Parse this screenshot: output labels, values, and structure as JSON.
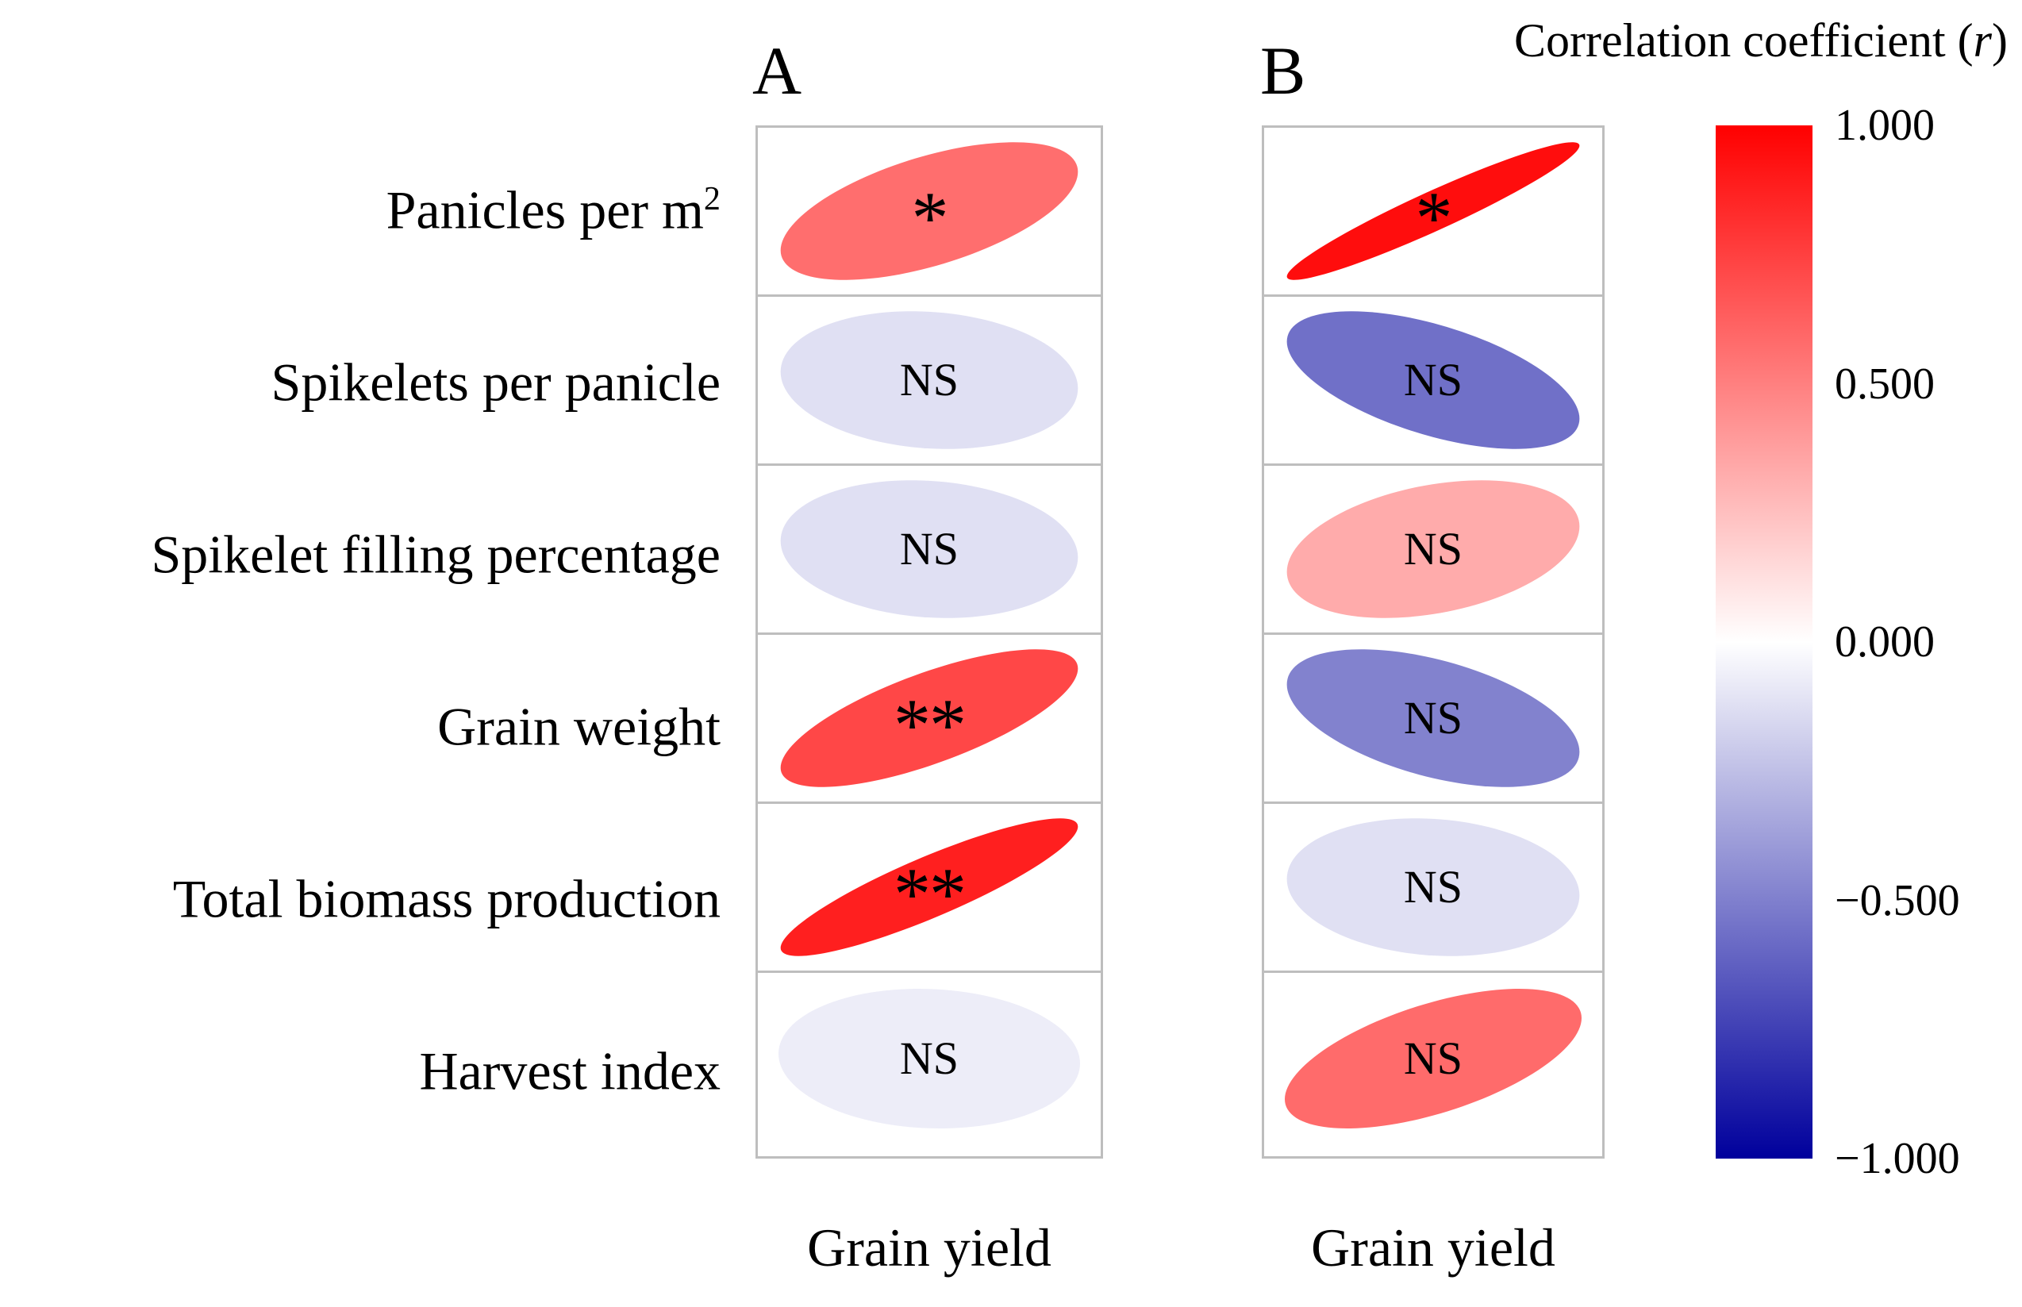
{
  "legend": {
    "title_prefix": "Correlation coefficient (",
    "title_italic": "r",
    "title_suffix": ")",
    "ticks": [
      {
        "label": "1.000",
        "value": 1
      },
      {
        "label": "0.500",
        "value": 0.5
      },
      {
        "label": "0.000",
        "value": 0
      },
      {
        "label": "−0.500",
        "value": -0.5
      },
      {
        "label": "−1.000",
        "value": -1
      }
    ],
    "colors": {
      "positive_max": "#FF0000",
      "zero": "#FFFFFF",
      "negative_max": "#00009C",
      "grid_border": "#BEBEBE"
    }
  },
  "rows": [
    {
      "base": "Panicles per m",
      "sup": "2"
    },
    {
      "base": "Spikelets per panicle",
      "sup": ""
    },
    {
      "base": "Spikelet filling percentage",
      "sup": ""
    },
    {
      "base": "Grain weight",
      "sup": ""
    },
    {
      "base": "Total biomass production",
      "sup": ""
    },
    {
      "base": "Harvest index",
      "sup": ""
    }
  ],
  "panels": [
    {
      "label": "A",
      "x_label": "Grain yield"
    },
    {
      "label": "B",
      "x_label": "Grain yield"
    }
  ],
  "chart_data": {
    "type": "heatmap",
    "subtype": "correlation-ellipse-matrix",
    "title": "Correlation coefficient (r)",
    "rows": [
      "Panicles per m2",
      "Spikelets per panicle",
      "Spikelet filling percentage",
      "Grain weight",
      "Total biomass production",
      "Harvest index"
    ],
    "columns": [
      "Grain yield (panel A)",
      "Grain yield (panel B)"
    ],
    "series": [
      {
        "panel": "A",
        "r": [
          0.57,
          -0.12,
          -0.12,
          0.72,
          0.88,
          -0.07
        ],
        "significance": [
          "*",
          "NS",
          "NS",
          "**",
          "**",
          "NS"
        ]
      },
      {
        "panel": "B",
        "r": [
          0.95,
          -0.56,
          0.33,
          -0.49,
          -0.12,
          0.58
        ],
        "significance": [
          "*",
          "NS",
          "NS",
          "NS",
          "NS",
          "NS"
        ]
      }
    ],
    "colorbar": {
      "title": "Correlation coefficient (r)",
      "range": [
        -1,
        1
      ],
      "tick_labels": [
        "1.000",
        "0.500",
        "0.000",
        "−0.500",
        "−1.000"
      ],
      "tick_values": [
        1,
        0.5,
        0,
        -0.5,
        -1
      ],
      "positive_color": "#FF0000",
      "negative_color": "#00009C"
    },
    "grid": true,
    "legend_position": "right"
  }
}
